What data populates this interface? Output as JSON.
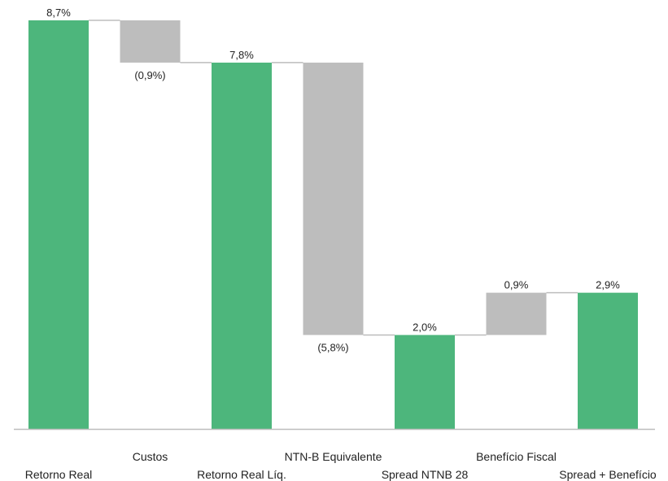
{
  "chart_data": {
    "type": "bar",
    "subtype": "waterfall",
    "categories": [
      "Retorno Real",
      "Custos",
      "Retorno Real Líq.",
      "NTN-B Equivalente",
      "Spread NTNB 28",
      "Benefício Fiscal",
      "Spread + Benefício"
    ],
    "values": [
      8.7,
      -0.9,
      7.8,
      -5.8,
      2.0,
      0.9,
      2.9
    ],
    "kinds": [
      "total",
      "delta",
      "total",
      "delta",
      "total",
      "delta",
      "total"
    ],
    "data_labels": [
      "8,7%",
      "(0,9%)",
      "7,8%",
      "(5,8%)",
      "2,0%",
      "0,9%",
      "2,9%"
    ],
    "title": "",
    "xlabel": "",
    "ylabel": "",
    "ylim": [
      0,
      8.7
    ],
    "grid": false,
    "legend": "none",
    "colors": {
      "total": "#4db67c",
      "delta": "#bdbdbd",
      "connector": "#bdbdbd",
      "axis": "#bdbdbd",
      "text": "#222222"
    }
  }
}
